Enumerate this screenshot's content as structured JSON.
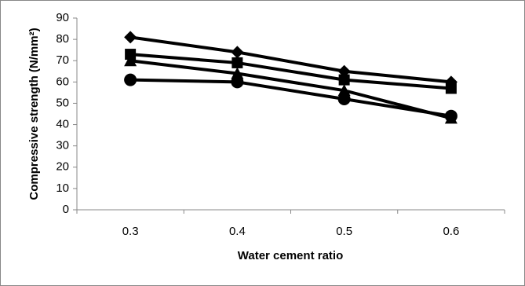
{
  "chart_data": {
    "type": "line",
    "categories": [
      "0.3",
      "0.4",
      "0.5",
      "0.6"
    ],
    "series": [
      {
        "color": "#000000",
        "marker": "diamond",
        "values": [
          81,
          74,
          65,
          60
        ]
      },
      {
        "color": "#000000",
        "marker": "square",
        "values": [
          73,
          69,
          61,
          57
        ]
      },
      {
        "color": "#000000",
        "marker": "triangle",
        "values": [
          70,
          64,
          56,
          43
        ]
      },
      {
        "color": "#000000",
        "marker": "circle",
        "values": [
          61,
          60,
          52,
          44
        ]
      }
    ],
    "ylim": [
      0,
      90
    ],
    "yticks": [
      0,
      10,
      20,
      30,
      40,
      50,
      60,
      70,
      80,
      90
    ],
    "xlabel": "Water cement ratio",
    "ylabel": "Compressive strength (N/mm²)",
    "grid": false
  }
}
